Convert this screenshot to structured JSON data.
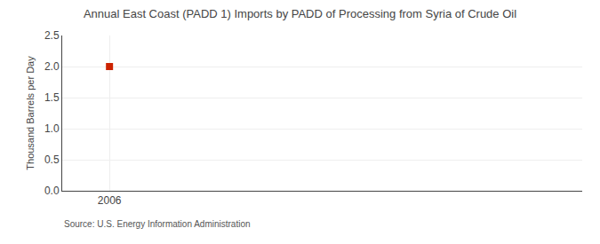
{
  "chart_data": {
    "type": "scatter",
    "title": "Annual East Coast (PADD 1) Imports by PADD of Processing from Syria of Crude Oil",
    "ylabel": "Thousand Barrels per Day",
    "source": "Source: U.S. Energy Information Administration",
    "x": [
      2006
    ],
    "values": [
      2.0
    ],
    "color": "#cc2200",
    "marker": "square",
    "xlim": [
      2005.7,
      2009.0
    ],
    "xticks": [
      2006
    ],
    "ylim": [
      0.0,
      2.5
    ],
    "yticks": [
      {
        "value": 0,
        "label": "0.0"
      },
      0.5,
      {
        "value": 1,
        "label": "1.0"
      },
      1.5,
      {
        "value": 2,
        "label": "2.0"
      },
      2.5
    ],
    "grid": true
  }
}
